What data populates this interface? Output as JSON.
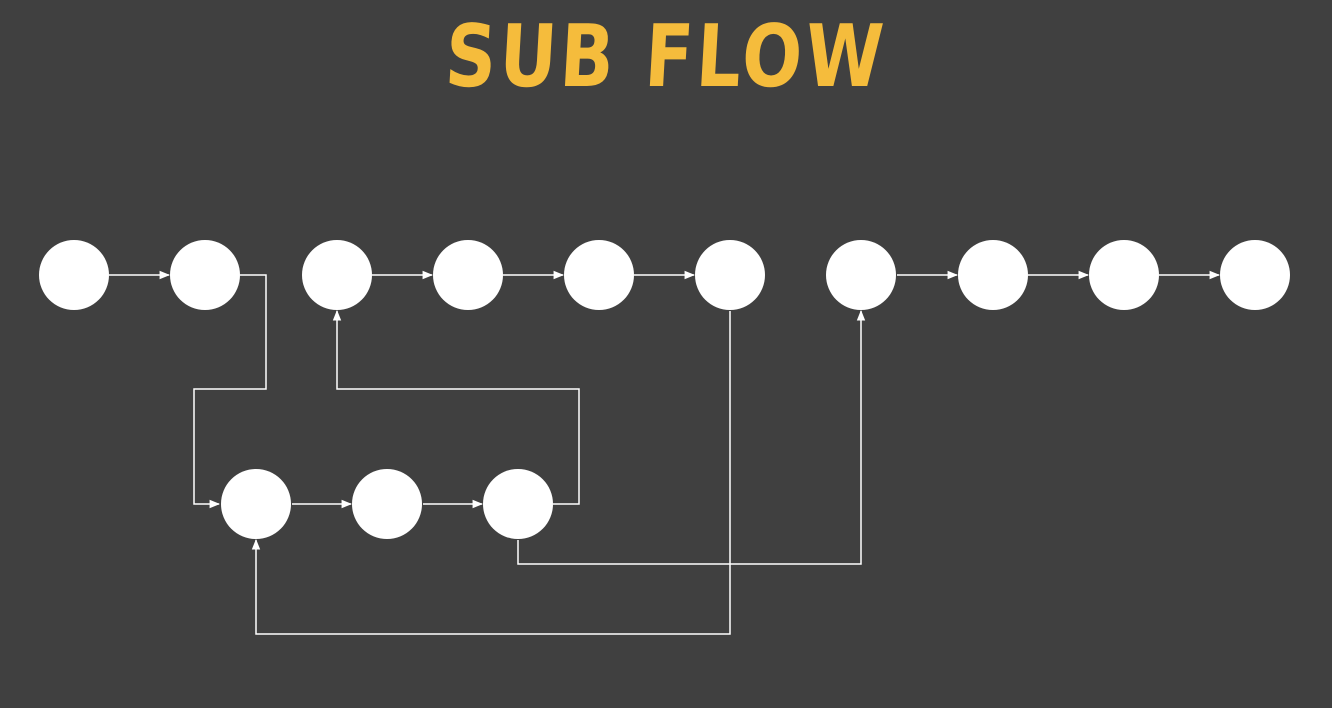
{
  "title": "SUB FLOW",
  "colors": {
    "background": "#404040",
    "title": "#f5bc3c",
    "node": "#ffffff",
    "edge": "#ffffff"
  },
  "diagram": {
    "type": "flowchart",
    "nodes": [
      {
        "id": "m1",
        "row": "main"
      },
      {
        "id": "m2",
        "row": "main"
      },
      {
        "id": "m3",
        "row": "main"
      },
      {
        "id": "m4",
        "row": "main"
      },
      {
        "id": "m5",
        "row": "main"
      },
      {
        "id": "m6",
        "row": "main"
      },
      {
        "id": "m7",
        "row": "main"
      },
      {
        "id": "m8",
        "row": "main"
      },
      {
        "id": "m9",
        "row": "main"
      },
      {
        "id": "m10",
        "row": "main"
      },
      {
        "id": "s1",
        "row": "sub"
      },
      {
        "id": "s2",
        "row": "sub"
      },
      {
        "id": "s3",
        "row": "sub"
      }
    ],
    "edges": [
      {
        "from": "m1",
        "to": "m2"
      },
      {
        "from": "m2",
        "to": "s1"
      },
      {
        "from": "m3",
        "to": "m4"
      },
      {
        "from": "m4",
        "to": "m5"
      },
      {
        "from": "m5",
        "to": "m6"
      },
      {
        "from": "m6",
        "to": "s1"
      },
      {
        "from": "m7",
        "to": "m8"
      },
      {
        "from": "m8",
        "to": "m9"
      },
      {
        "from": "m9",
        "to": "m10"
      },
      {
        "from": "s1",
        "to": "s2"
      },
      {
        "from": "s2",
        "to": "s3"
      },
      {
        "from": "s3",
        "to": "m3"
      },
      {
        "from": "s3",
        "to": "m7"
      }
    ]
  }
}
